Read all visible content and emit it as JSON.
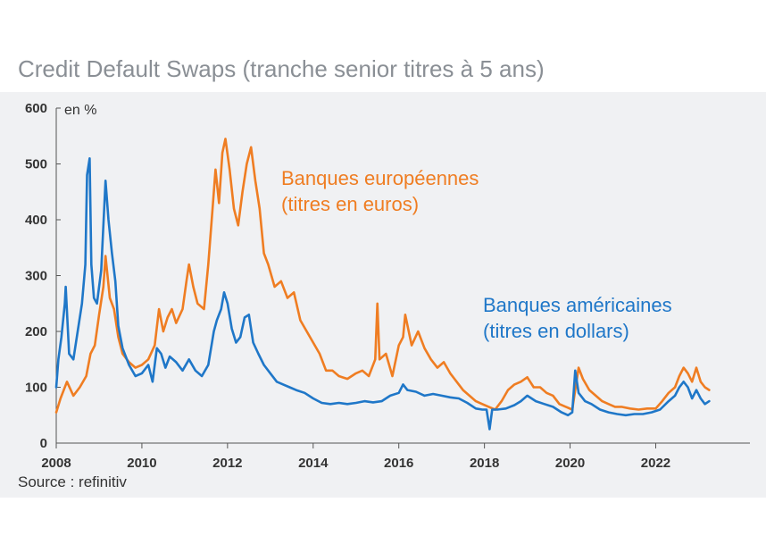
{
  "chart_data": {
    "type": "line",
    "title": "Credit Default Swaps (tranche senior titres à 5 ans)",
    "ylabel": "en %",
    "source": "Source : refinitiv",
    "ylim": [
      0,
      600
    ],
    "xlim": [
      2008,
      2024.2
    ],
    "y_ticks": [
      0,
      100,
      200,
      300,
      400,
      500,
      600
    ],
    "x_ticks": [
      2008,
      2010,
      2012,
      2014,
      2016,
      2018,
      2020,
      2022
    ],
    "series": [
      {
        "name": "Banques européennes",
        "name_line2": "(titres en euros)",
        "color": "#ef7d22",
        "points": [
          [
            2008.0,
            55
          ],
          [
            2008.1,
            80
          ],
          [
            2008.25,
            110
          ],
          [
            2008.4,
            85
          ],
          [
            2008.55,
            100
          ],
          [
            2008.7,
            120
          ],
          [
            2008.8,
            160
          ],
          [
            2008.9,
            175
          ],
          [
            2009.0,
            230
          ],
          [
            2009.1,
            280
          ],
          [
            2009.15,
            335
          ],
          [
            2009.25,
            260
          ],
          [
            2009.35,
            240
          ],
          [
            2009.45,
            190
          ],
          [
            2009.55,
            160
          ],
          [
            2009.7,
            145
          ],
          [
            2009.85,
            135
          ],
          [
            2010.0,
            140
          ],
          [
            2010.15,
            150
          ],
          [
            2010.3,
            175
          ],
          [
            2010.4,
            240
          ],
          [
            2010.5,
            200
          ],
          [
            2010.6,
            225
          ],
          [
            2010.7,
            240
          ],
          [
            2010.8,
            215
          ],
          [
            2010.95,
            240
          ],
          [
            2011.05,
            295
          ],
          [
            2011.1,
            320
          ],
          [
            2011.2,
            280
          ],
          [
            2011.3,
            250
          ],
          [
            2011.45,
            240
          ],
          [
            2011.55,
            320
          ],
          [
            2011.65,
            420
          ],
          [
            2011.72,
            490
          ],
          [
            2011.8,
            430
          ],
          [
            2011.88,
            520
          ],
          [
            2011.95,
            545
          ],
          [
            2012.05,
            490
          ],
          [
            2012.15,
            420
          ],
          [
            2012.25,
            390
          ],
          [
            2012.35,
            450
          ],
          [
            2012.45,
            500
          ],
          [
            2012.55,
            530
          ],
          [
            2012.65,
            470
          ],
          [
            2012.75,
            420
          ],
          [
            2012.85,
            340
          ],
          [
            2012.95,
            320
          ],
          [
            2013.1,
            280
          ],
          [
            2013.25,
            290
          ],
          [
            2013.4,
            260
          ],
          [
            2013.55,
            270
          ],
          [
            2013.7,
            220
          ],
          [
            2013.85,
            200
          ],
          [
            2014.0,
            180
          ],
          [
            2014.15,
            160
          ],
          [
            2014.3,
            130
          ],
          [
            2014.45,
            130
          ],
          [
            2014.6,
            120
          ],
          [
            2014.8,
            115
          ],
          [
            2015.0,
            125
          ],
          [
            2015.15,
            130
          ],
          [
            2015.3,
            120
          ],
          [
            2015.45,
            150
          ],
          [
            2015.5,
            250
          ],
          [
            2015.55,
            150
          ],
          [
            2015.7,
            160
          ],
          [
            2015.85,
            120
          ],
          [
            2016.0,
            175
          ],
          [
            2016.1,
            190
          ],
          [
            2016.15,
            230
          ],
          [
            2016.3,
            175
          ],
          [
            2016.45,
            200
          ],
          [
            2016.6,
            170
          ],
          [
            2016.75,
            150
          ],
          [
            2016.9,
            135
          ],
          [
            2017.05,
            145
          ],
          [
            2017.2,
            125
          ],
          [
            2017.35,
            110
          ],
          [
            2017.5,
            95
          ],
          [
            2017.65,
            85
          ],
          [
            2017.8,
            75
          ],
          [
            2017.95,
            70
          ],
          [
            2018.1,
            65
          ],
          [
            2018.25,
            60
          ],
          [
            2018.4,
            75
          ],
          [
            2018.55,
            95
          ],
          [
            2018.7,
            105
          ],
          [
            2018.85,
            110
          ],
          [
            2019.0,
            118
          ],
          [
            2019.15,
            100
          ],
          [
            2019.3,
            100
          ],
          [
            2019.45,
            90
          ],
          [
            2019.6,
            85
          ],
          [
            2019.75,
            70
          ],
          [
            2019.9,
            65
          ],
          [
            2020.05,
            60
          ],
          [
            2020.2,
            135
          ],
          [
            2020.3,
            115
          ],
          [
            2020.45,
            95
          ],
          [
            2020.6,
            85
          ],
          [
            2020.75,
            75
          ],
          [
            2020.9,
            70
          ],
          [
            2021.05,
            65
          ],
          [
            2021.2,
            65
          ],
          [
            2021.4,
            62
          ],
          [
            2021.6,
            60
          ],
          [
            2021.8,
            62
          ],
          [
            2022.0,
            62
          ],
          [
            2022.15,
            75
          ],
          [
            2022.3,
            90
          ],
          [
            2022.45,
            100
          ],
          [
            2022.55,
            120
          ],
          [
            2022.65,
            135
          ],
          [
            2022.75,
            125
          ],
          [
            2022.85,
            110
          ],
          [
            2022.95,
            135
          ],
          [
            2023.05,
            110
          ],
          [
            2023.15,
            100
          ],
          [
            2023.25,
            95
          ]
        ]
      },
      {
        "name": "Banques américaines",
        "name_line2": "(titres en dollars)",
        "color": "#1f77c8",
        "points": [
          [
            2008.0,
            100
          ],
          [
            2008.05,
            150
          ],
          [
            2008.12,
            190
          ],
          [
            2008.2,
            250
          ],
          [
            2008.22,
            280
          ],
          [
            2008.3,
            160
          ],
          [
            2008.4,
            150
          ],
          [
            2008.5,
            200
          ],
          [
            2008.6,
            250
          ],
          [
            2008.68,
            320
          ],
          [
            2008.72,
            480
          ],
          [
            2008.78,
            510
          ],
          [
            2008.82,
            320
          ],
          [
            2008.88,
            260
          ],
          [
            2008.95,
            250
          ],
          [
            2009.05,
            310
          ],
          [
            2009.15,
            470
          ],
          [
            2009.22,
            400
          ],
          [
            2009.3,
            340
          ],
          [
            2009.38,
            290
          ],
          [
            2009.45,
            210
          ],
          [
            2009.55,
            170
          ],
          [
            2009.7,
            140
          ],
          [
            2009.85,
            120
          ],
          [
            2010.0,
            125
          ],
          [
            2010.15,
            140
          ],
          [
            2010.25,
            110
          ],
          [
            2010.35,
            170
          ],
          [
            2010.45,
            160
          ],
          [
            2010.55,
            135
          ],
          [
            2010.65,
            155
          ],
          [
            2010.8,
            145
          ],
          [
            2010.95,
            130
          ],
          [
            2011.1,
            150
          ],
          [
            2011.25,
            130
          ],
          [
            2011.4,
            120
          ],
          [
            2011.55,
            140
          ],
          [
            2011.68,
            200
          ],
          [
            2011.75,
            220
          ],
          [
            2011.85,
            240
          ],
          [
            2011.92,
            270
          ],
          [
            2012.0,
            250
          ],
          [
            2012.1,
            205
          ],
          [
            2012.2,
            180
          ],
          [
            2012.3,
            190
          ],
          [
            2012.4,
            225
          ],
          [
            2012.5,
            230
          ],
          [
            2012.6,
            180
          ],
          [
            2012.72,
            160
          ],
          [
            2012.85,
            140
          ],
          [
            2013.0,
            125
          ],
          [
            2013.15,
            110
          ],
          [
            2013.3,
            105
          ],
          [
            2013.45,
            100
          ],
          [
            2013.6,
            95
          ],
          [
            2013.8,
            90
          ],
          [
            2014.0,
            80
          ],
          [
            2014.2,
            72
          ],
          [
            2014.4,
            70
          ],
          [
            2014.6,
            72
          ],
          [
            2014.8,
            70
          ],
          [
            2015.0,
            72
          ],
          [
            2015.2,
            75
          ],
          [
            2015.4,
            73
          ],
          [
            2015.6,
            75
          ],
          [
            2015.8,
            85
          ],
          [
            2016.0,
            90
          ],
          [
            2016.1,
            105
          ],
          [
            2016.2,
            95
          ],
          [
            2016.4,
            92
          ],
          [
            2016.6,
            85
          ],
          [
            2016.8,
            88
          ],
          [
            2017.0,
            85
          ],
          [
            2017.2,
            82
          ],
          [
            2017.4,
            80
          ],
          [
            2017.6,
            72
          ],
          [
            2017.8,
            62
          ],
          [
            2017.95,
            60
          ],
          [
            2018.05,
            60
          ],
          [
            2018.12,
            25
          ],
          [
            2018.18,
            60
          ],
          [
            2018.3,
            60
          ],
          [
            2018.5,
            62
          ],
          [
            2018.7,
            68
          ],
          [
            2018.85,
            75
          ],
          [
            2019.0,
            85
          ],
          [
            2019.2,
            75
          ],
          [
            2019.4,
            70
          ],
          [
            2019.6,
            65
          ],
          [
            2019.8,
            55
          ],
          [
            2019.95,
            50
          ],
          [
            2020.05,
            55
          ],
          [
            2020.12,
            130
          ],
          [
            2020.2,
            90
          ],
          [
            2020.35,
            75
          ],
          [
            2020.5,
            70
          ],
          [
            2020.7,
            60
          ],
          [
            2020.9,
            55
          ],
          [
            2021.1,
            52
          ],
          [
            2021.3,
            50
          ],
          [
            2021.5,
            52
          ],
          [
            2021.7,
            52
          ],
          [
            2021.9,
            55
          ],
          [
            2022.1,
            60
          ],
          [
            2022.3,
            75
          ],
          [
            2022.45,
            85
          ],
          [
            2022.55,
            100
          ],
          [
            2022.65,
            110
          ],
          [
            2022.75,
            100
          ],
          [
            2022.85,
            80
          ],
          [
            2022.95,
            95
          ],
          [
            2023.05,
            80
          ],
          [
            2023.15,
            70
          ],
          [
            2023.25,
            75
          ]
        ]
      }
    ]
  }
}
